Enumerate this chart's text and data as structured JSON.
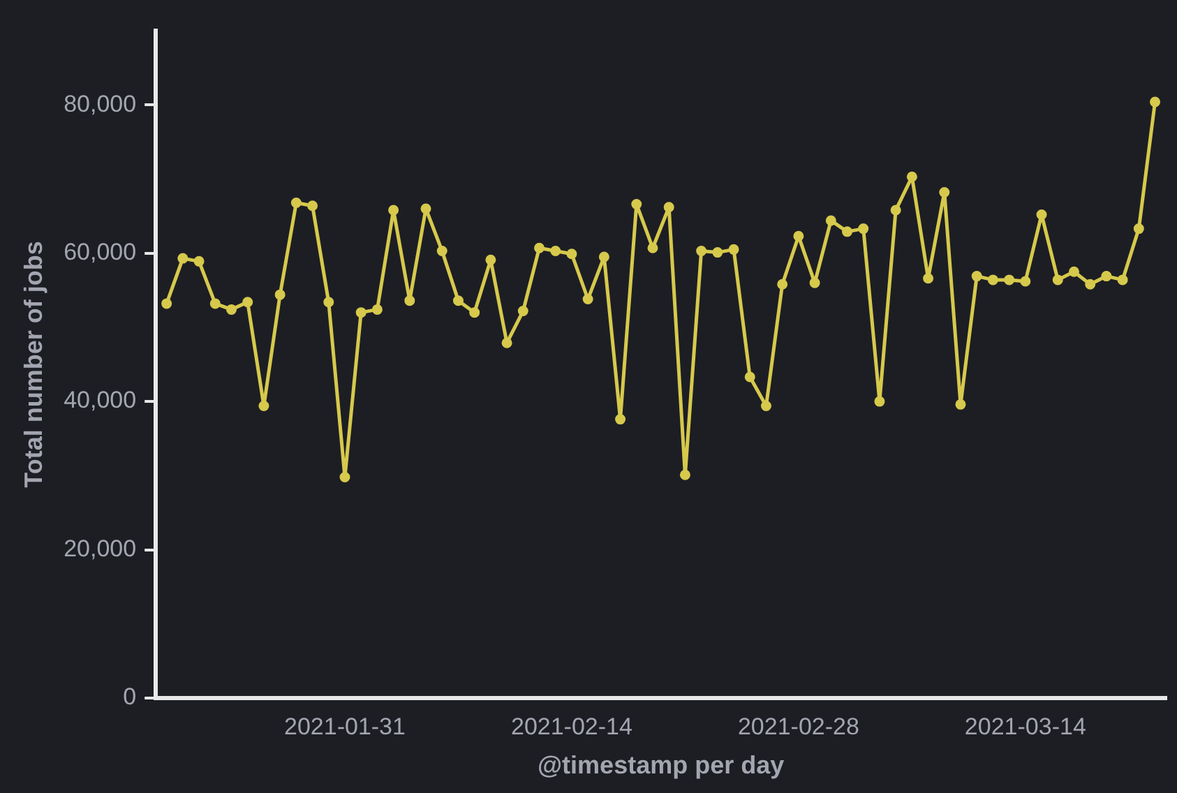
{
  "chart_data": {
    "type": "line",
    "xlabel": "@timestamp per day",
    "ylabel": "Total number of jobs",
    "x": [
      "2021-01-20",
      "2021-01-21",
      "2021-01-22",
      "2021-01-23",
      "2021-01-24",
      "2021-01-25",
      "2021-01-26",
      "2021-01-27",
      "2021-01-28",
      "2021-01-29",
      "2021-01-30",
      "2021-01-31",
      "2021-02-01",
      "2021-02-02",
      "2021-02-03",
      "2021-02-04",
      "2021-02-05",
      "2021-02-06",
      "2021-02-07",
      "2021-02-08",
      "2021-02-09",
      "2021-02-10",
      "2021-02-11",
      "2021-02-12",
      "2021-02-13",
      "2021-02-14",
      "2021-02-15",
      "2021-02-16",
      "2021-02-17",
      "2021-02-18",
      "2021-02-19",
      "2021-02-20",
      "2021-02-21",
      "2021-02-22",
      "2021-02-23",
      "2021-02-24",
      "2021-02-25",
      "2021-02-26",
      "2021-02-27",
      "2021-02-28",
      "2021-03-01",
      "2021-03-02",
      "2021-03-03",
      "2021-03-04",
      "2021-03-05",
      "2021-03-06",
      "2021-03-07",
      "2021-03-08",
      "2021-03-09",
      "2021-03-10",
      "2021-03-11",
      "2021-03-12",
      "2021-03-13",
      "2021-03-14",
      "2021-03-15",
      "2021-03-16",
      "2021-03-17",
      "2021-03-18",
      "2021-03-19",
      "2021-03-20",
      "2021-03-21",
      "2021-03-22"
    ],
    "series": [
      {
        "color": "#d6c94c",
        "values": [
          53200,
          59300,
          58900,
          53200,
          52400,
          53400,
          39400,
          54400,
          66800,
          66400,
          53400,
          29800,
          52000,
          52400,
          65800,
          53600,
          66000,
          60300,
          53600,
          52000,
          59100,
          47900,
          52200,
          60700,
          60300,
          59900,
          53800,
          59500,
          37600,
          66600,
          60700,
          66200,
          30100,
          60300,
          60100,
          60500,
          43300,
          39400,
          55800,
          62300,
          56000,
          64400,
          62900,
          63300,
          40000,
          65800,
          70300,
          56600,
          68200,
          39600,
          56900,
          56400,
          56400,
          56200,
          65200,
          56400,
          57500,
          55800,
          56900,
          56400,
          63300,
          80400
        ]
      }
    ],
    "xlim": [
      "2021-01-19T08:00",
      "2021-03-22T16:00"
    ],
    "xticks": [
      "2021-01-31",
      "2021-02-14",
      "2021-02-28",
      "2021-03-14"
    ],
    "ylim": [
      0,
      90000
    ],
    "yticks": [
      {
        "value": 0,
        "label": "0"
      },
      {
        "value": 20000,
        "label": "20,000"
      },
      {
        "value": 40000,
        "label": "40,000"
      },
      {
        "value": 60000,
        "label": "60,000"
      },
      {
        "value": 80000,
        "label": "80,000"
      }
    ],
    "grid": false,
    "legend": false,
    "marker": "circle",
    "line_style": "solid"
  }
}
